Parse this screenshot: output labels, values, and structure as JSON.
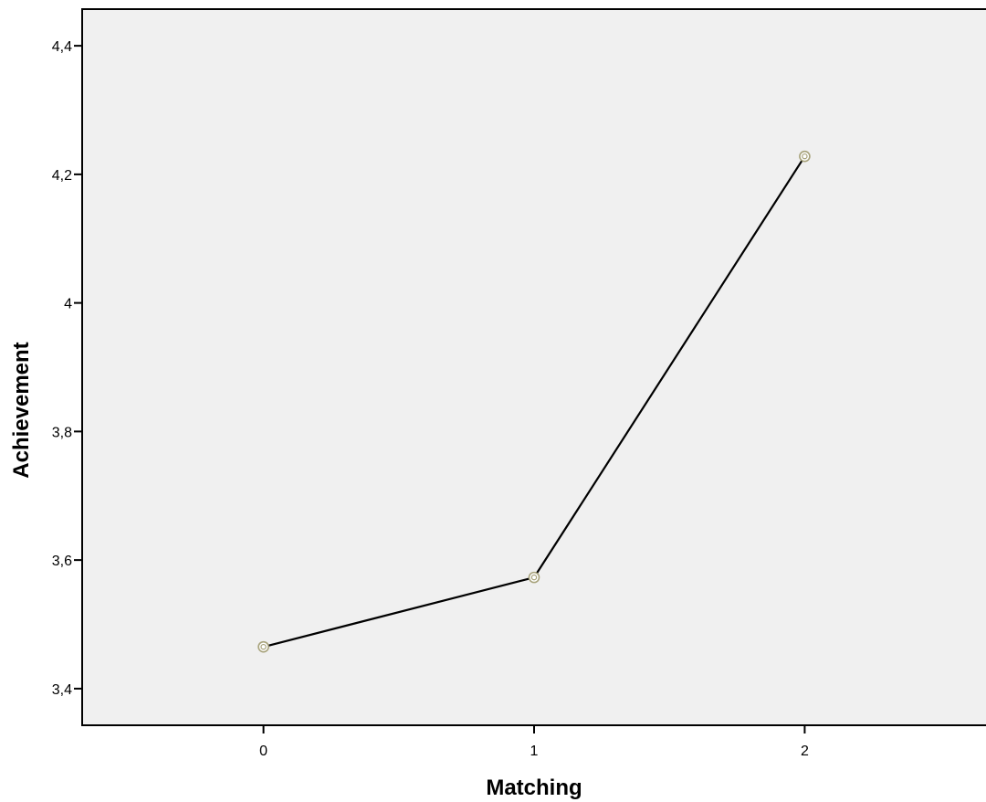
{
  "chart_data": {
    "type": "line",
    "title": "",
    "xlabel": "Matching",
    "ylabel": "Achievement",
    "categories": [
      "0",
      "1",
      "2"
    ],
    "x": [
      0,
      1,
      2
    ],
    "series": [
      {
        "values": [
          3.465,
          3.573,
          4.228
        ]
      }
    ],
    "xlim": [
      -0.67,
      2.67
    ],
    "ylim": [
      3.343,
      4.457
    ],
    "y_ticks": [
      3.4,
      3.6,
      3.8,
      4.0,
      4.2,
      4.4
    ],
    "y_tick_labels": [
      "3,4",
      "3,6",
      "3,8",
      "4",
      "4,2",
      "4,4"
    ],
    "grid": false,
    "legend": "none",
    "colors": {
      "plot_background": "#f0f0f0",
      "line": "#000000",
      "marker": "#a7a27a"
    }
  }
}
